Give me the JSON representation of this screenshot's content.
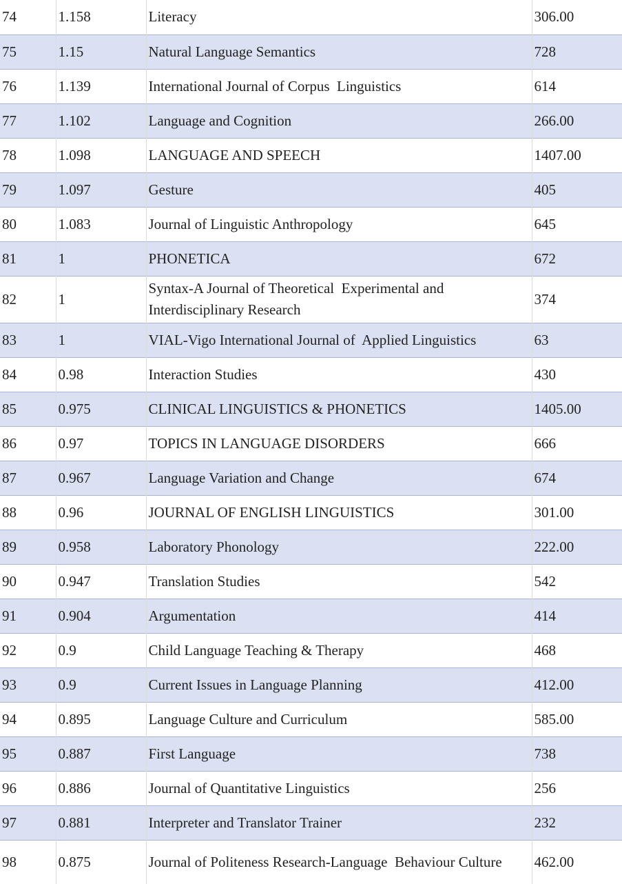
{
  "rows": [
    {
      "rank": "74",
      "score": "1.158",
      "journal": "Literacy",
      "count": "306.00"
    },
    {
      "rank": "75",
      "score": "1.15",
      "journal": "Natural Language Semantics",
      "count": "728"
    },
    {
      "rank": "76",
      "score": "1.139",
      "journal": "International Journal of Corpus  Linguistics",
      "count": "614"
    },
    {
      "rank": "77",
      "score": "1.102",
      "journal": "Language and Cognition",
      "count": "266.00"
    },
    {
      "rank": "78",
      "score": "1.098",
      "journal": "LANGUAGE AND SPEECH",
      "count": "1407.00"
    },
    {
      "rank": "79",
      "score": "1.097",
      "journal": "Gesture",
      "count": "405"
    },
    {
      "rank": "80",
      "score": "1.083",
      "journal": "Journal of Linguistic Anthropology",
      "count": "645"
    },
    {
      "rank": "81",
      "score": "1",
      "journal": "PHONETICA",
      "count": "672"
    },
    {
      "rank": "82",
      "score": "1",
      "journal": "Syntax-A Journal of Theoretical  Experimental and Interdisciplinary Research",
      "count": "374"
    },
    {
      "rank": "83",
      "score": "1",
      "journal": "VIAL-Vigo International Journal of  Applied Linguistics",
      "count": "63"
    },
    {
      "rank": "84",
      "score": "0.98",
      "journal": "Interaction Studies",
      "count": "430"
    },
    {
      "rank": "85",
      "score": "0.975",
      "journal": "CLINICAL LINGUISTICS & PHONETICS",
      "count": "1405.00"
    },
    {
      "rank": "86",
      "score": "0.97",
      "journal": "TOPICS IN LANGUAGE DISORDERS",
      "count": "666"
    },
    {
      "rank": "87",
      "score": "0.967",
      "journal": "Language Variation and Change",
      "count": "674"
    },
    {
      "rank": "88",
      "score": "0.96",
      "journal": "JOURNAL OF ENGLISH LINGUISTICS",
      "count": "301.00"
    },
    {
      "rank": "89",
      "score": "0.958",
      "journal": "Laboratory Phonology",
      "count": "222.00"
    },
    {
      "rank": "90",
      "score": "0.947",
      "journal": "Translation Studies",
      "count": "542"
    },
    {
      "rank": "91",
      "score": "0.904",
      "journal": "Argumentation",
      "count": "414"
    },
    {
      "rank": "92",
      "score": "0.9",
      "journal": "Child Language Teaching & Therapy",
      "count": "468"
    },
    {
      "rank": "93",
      "score": "0.9",
      "journal": "Current Issues in Language Planning",
      "count": "412.00"
    },
    {
      "rank": "94",
      "score": "0.895",
      "journal": "Language Culture and Curriculum",
      "count": "585.00"
    },
    {
      "rank": "95",
      "score": "0.887",
      "journal": "First Language",
      "count": "738"
    },
    {
      "rank": "96",
      "score": "0.886",
      "journal": "Journal of Quantitative Linguistics",
      "count": "256"
    },
    {
      "rank": "97",
      "score": "0.881",
      "journal": "Interpreter and Translator Trainer",
      "count": "232"
    },
    {
      "rank": "98",
      "score": "0.875",
      "journal": "Journal of Politeness Research-Language  Behaviour Culture",
      "count": "462.00"
    }
  ],
  "colors": {
    "shaded_row": "#dbe1f2",
    "row_border": "#a6b4d8",
    "text": "#222222"
  }
}
